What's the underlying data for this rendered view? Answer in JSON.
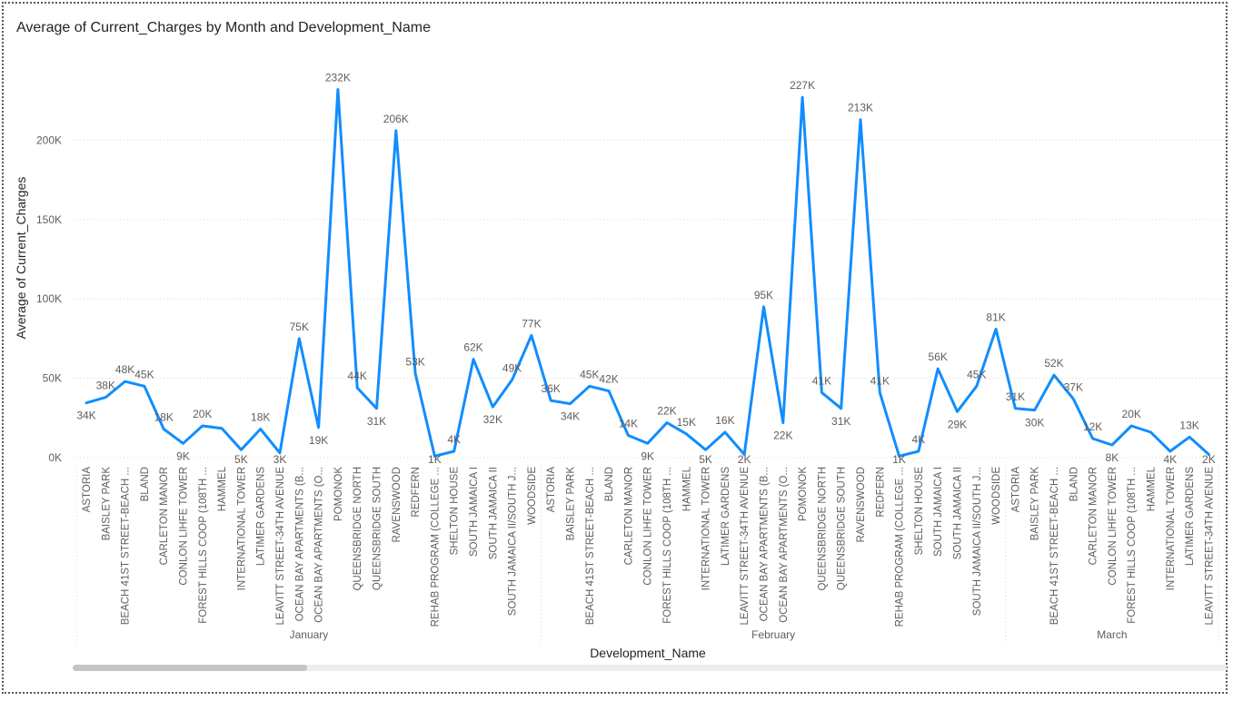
{
  "chart_data": {
    "type": "line",
    "title": "Average of Current_Charges by Month and Development_Name",
    "xlabel": "Development_Name",
    "ylabel": "Average of Current_Charges",
    "ylim": [
      0,
      250000
    ],
    "yticks": [
      0,
      50000,
      100000,
      150000,
      200000
    ],
    "ytick_labels": [
      "0K",
      "50K",
      "100K",
      "150K",
      "200K"
    ],
    "grid": true,
    "line_color": "#118DFF",
    "months": [
      {
        "name": "January",
        "categories": [
          "ASTORIA",
          "BAISLEY PARK",
          "BEACH 41ST STREET-BEACH ...",
          "BLAND",
          "CARLETON MANOR",
          "CONLON LIHFE TOWER",
          "FOREST HILLS COOP (108TH ...",
          "HAMMEL",
          "INTERNATIONAL TOWER",
          "LATIMER GARDENS",
          "LEAVITT STREET-34TH AVENUE",
          "OCEAN BAY APARTMENTS (B...",
          "OCEAN BAY APARTMENTS (O...",
          "POMONOK",
          "QUEENSBRIDGE NORTH",
          "QUEENSBRIDGE SOUTH",
          "RAVENSWOOD",
          "REDFERN",
          "REHAB PROGRAM (COLLEGE ...",
          "SHELTON HOUSE",
          "SOUTH JAMAICA I",
          "SOUTH JAMAICA II",
          "SOUTH JAMAICA II/SOUTH J...",
          "WOODSIDE"
        ],
        "values": [
          34500,
          38000,
          48000,
          45000,
          18000,
          9000,
          20000,
          18500,
          5000,
          18000,
          3000,
          75000,
          19000,
          232000,
          44000,
          31000,
          206000,
          53000,
          1000,
          4000,
          62000,
          32000,
          49000,
          77000
        ],
        "labels": [
          "34K",
          "38K",
          "48K",
          "45K",
          "18K",
          "9K",
          "20K",
          "",
          "5K",
          "18K",
          "3K",
          "75K",
          "19K",
          "232K",
          "44K",
          "31K",
          "206K",
          "53K",
          "1K",
          "4K",
          "62K",
          "32K",
          "49K",
          "77K"
        ]
      },
      {
        "name": "February",
        "categories": [
          "ASTORIA",
          "BAISLEY PARK",
          "BEACH 41ST STREET-BEACH ...",
          "BLAND",
          "CARLETON MANOR",
          "CONLON LIHFE TOWER",
          "FOREST HILLS COOP (108TH ...",
          "HAMMEL",
          "INTERNATIONAL TOWER",
          "LATIMER GARDENS",
          "LEAVITT STREET-34TH AVENUE",
          "OCEAN BAY APARTMENTS (B...",
          "OCEAN BAY APARTMENTS (O...",
          "POMONOK",
          "QUEENSBRIDGE NORTH",
          "QUEENSBRIDGE SOUTH",
          "RAVENSWOOD",
          "REDFERN",
          "REHAB PROGRAM (COLLEGE ...",
          "SHELTON HOUSE",
          "SOUTH JAMAICA I",
          "SOUTH JAMAICA II",
          "SOUTH JAMAICA II/SOUTH J...",
          "WOODSIDE"
        ],
        "values": [
          36000,
          34000,
          45000,
          42000,
          14000,
          9000,
          22000,
          15000,
          5000,
          16000,
          2000,
          95000,
          22000,
          227000,
          41000,
          31000,
          213000,
          41000,
          1000,
          4000,
          56000,
          29000,
          45000,
          81000
        ],
        "labels": [
          "36K",
          "34K",
          "45K",
          "42K",
          "14K",
          "9K",
          "22K",
          "15K",
          "5K",
          "16K",
          "2K",
          "95K",
          "22K",
          "227K",
          "41K",
          "31K",
          "213K",
          "41K",
          "1K",
          "4K",
          "56K",
          "29K",
          "45K",
          "81K"
        ]
      },
      {
        "name": "March",
        "categories": [
          "ASTORIA",
          "BAISLEY PARK",
          "BEACH 41ST STREET-BEACH ...",
          "BLAND",
          "CARLETON MANOR",
          "CONLON LIHFE TOWER",
          "FOREST HILLS COOP (108TH ...",
          "HAMMEL",
          "INTERNATIONAL TOWER",
          "LATIMER GARDENS",
          "LEAVITT STREET-34TH AVENUE"
        ],
        "values": [
          31000,
          30000,
          52000,
          37000,
          12000,
          8000,
          20000,
          16000,
          4000,
          13000,
          2000
        ],
        "labels": [
          "31K",
          "30K",
          "52K",
          "37K",
          "12K",
          "8K",
          "20K",
          "",
          "4K",
          "13K",
          "2K"
        ]
      }
    ]
  }
}
